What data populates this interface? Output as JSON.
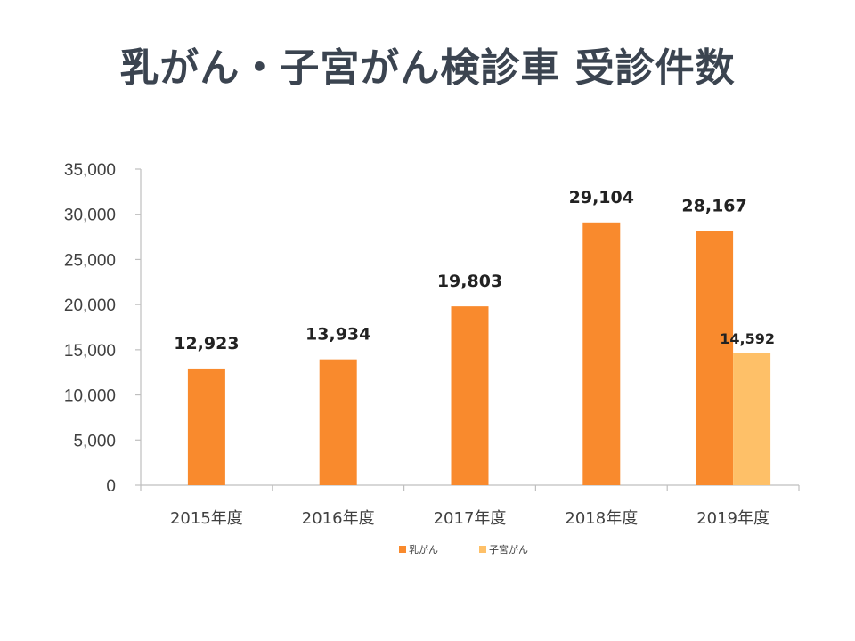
{
  "title": "乳がん・子宮がん検診車 受診件数",
  "colors": {
    "primary": "#f98a2d",
    "secondary": "#fec068",
    "axis": "#bfbfbf",
    "title": "#3b4450"
  },
  "chart_data": {
    "type": "bar",
    "title": "乳がん・子宮がん検診車 受診件数",
    "xlabel": "",
    "ylabel": "",
    "categories": [
      "2015年度",
      "2016年度",
      "2017年度",
      "2018年度",
      "2019年度"
    ],
    "series": [
      {
        "name": "乳がん",
        "values": [
          12923,
          13934,
          19803,
          29104,
          28167
        ],
        "labels": [
          "12,923",
          "13,934",
          "19,803",
          "29,104",
          "28,167"
        ]
      },
      {
        "name": "子宮がん",
        "values": [
          null,
          null,
          null,
          null,
          14592
        ],
        "labels": [
          "",
          "",
          "",
          "",
          "14,592"
        ]
      }
    ],
    "ylim": [
      0,
      35000
    ],
    "yticks": [
      0,
      5000,
      10000,
      15000,
      20000,
      25000,
      30000,
      35000
    ],
    "ytick_labels": [
      "0",
      "5,000",
      "10,000",
      "15,000",
      "20,000",
      "25,000",
      "30,000",
      "35,000"
    ],
    "grid": false,
    "legend": "bottom"
  }
}
